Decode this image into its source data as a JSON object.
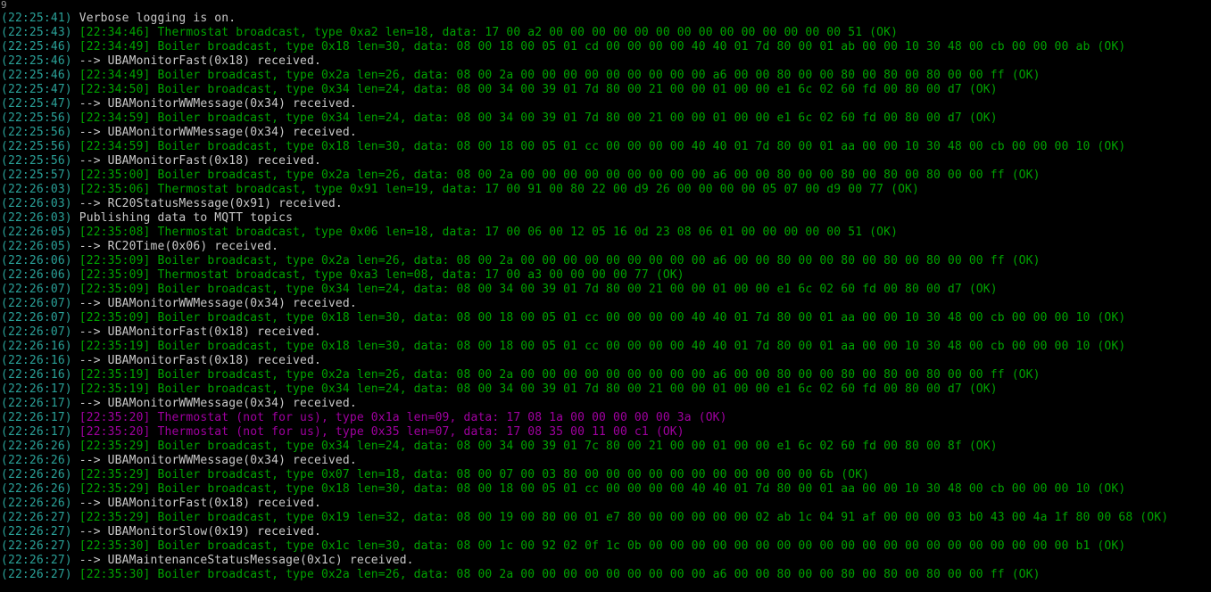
{
  "terminal": {
    "artifact_glyph": "9",
    "colors": {
      "background": "#000000",
      "timestamp": "#2aa198",
      "broadcast_green": "#00a300",
      "info_white": "#c9c9c9",
      "not_for_us_magenta": "#a000a0"
    },
    "lines": [
      {
        "ts": "(22:25:41)",
        "msg": "Verbose logging is on.",
        "c": "white"
      },
      {
        "ts": "(22:25:43)",
        "msg": "[22:34:46] Thermostat broadcast, type 0xa2 len=18, data: 17 00 a2 00 00 00 00 00 00 00 00 00 00 00 00 00 00 51 (OK)",
        "c": "green"
      },
      {
        "ts": "(22:25:46)",
        "msg": "[22:34:49] Boiler broadcast, type 0x18 len=30, data: 08 00 18 00 05 01 cd 00 00 00 00 40 40 01 7d 80 00 01 ab 00 00 10 30 48 00 cb 00 00 00 ab (OK)",
        "c": "green"
      },
      {
        "ts": "(22:25:46)",
        "msg": "--> UBAMonitorFast(0x18) received.",
        "c": "white"
      },
      {
        "ts": "(22:25:46)",
        "msg": "[22:34:49] Boiler broadcast, type 0x2a len=26, data: 08 00 2a 00 00 00 00 00 00 00 00 00 a6 00 00 80 00 00 80 00 80 00 80 00 00 ff (OK)",
        "c": "green"
      },
      {
        "ts": "(22:25:47)",
        "msg": "[22:34:50] Boiler broadcast, type 0x34 len=24, data: 08 00 34 00 39 01 7d 80 00 21 00 00 01 00 00 e1 6c 02 60 fd 00 80 00 d7 (OK)",
        "c": "green"
      },
      {
        "ts": "(22:25:47)",
        "msg": "--> UBAMonitorWWMessage(0x34) received.",
        "c": "white"
      },
      {
        "ts": "(22:25:56)",
        "msg": "[22:34:59] Boiler broadcast, type 0x34 len=24, data: 08 00 34 00 39 01 7d 80 00 21 00 00 01 00 00 e1 6c 02 60 fd 00 80 00 d7 (OK)",
        "c": "green"
      },
      {
        "ts": "(22:25:56)",
        "msg": "--> UBAMonitorWWMessage(0x34) received.",
        "c": "white"
      },
      {
        "ts": "(22:25:56)",
        "msg": "[22:34:59] Boiler broadcast, type 0x18 len=30, data: 08 00 18 00 05 01 cc 00 00 00 00 40 40 01 7d 80 00 01 aa 00 00 10 30 48 00 cb 00 00 00 10 (OK)",
        "c": "green"
      },
      {
        "ts": "(22:25:56)",
        "msg": "--> UBAMonitorFast(0x18) received.",
        "c": "white"
      },
      {
        "ts": "(22:25:57)",
        "msg": "[22:35:00] Boiler broadcast, type 0x2a len=26, data: 08 00 2a 00 00 00 00 00 00 00 00 00 a6 00 00 80 00 00 80 00 80 00 80 00 00 ff (OK)",
        "c": "green"
      },
      {
        "ts": "(22:26:03)",
        "msg": "[22:35:06] Thermostat broadcast, type 0x91 len=19, data: 17 00 91 00 80 22 00 d9 26 00 00 00 00 05 07 00 d9 00 77 (OK)",
        "c": "green"
      },
      {
        "ts": "(22:26:03)",
        "msg": "--> RC20StatusMessage(0x91) received.",
        "c": "white"
      },
      {
        "ts": "(22:26:03)",
        "msg": "Publishing data to MQTT topics",
        "c": "white"
      },
      {
        "ts": "(22:26:05)",
        "msg": "[22:35:08] Thermostat broadcast, type 0x06 len=18, data: 17 00 06 00 12 05 16 0d 23 08 06 01 00 00 00 00 00 51 (OK)",
        "c": "green"
      },
      {
        "ts": "(22:26:05)",
        "msg": "--> RC20Time(0x06) received.",
        "c": "white"
      },
      {
        "ts": "(22:26:06)",
        "msg": "[22:35:09] Boiler broadcast, type 0x2a len=26, data: 08 00 2a 00 00 00 00 00 00 00 00 00 a6 00 00 80 00 00 80 00 80 00 80 00 00 ff (OK)",
        "c": "green"
      },
      {
        "ts": "(22:26:06)",
        "msg": "[22:35:09] Thermostat broadcast, type 0xa3 len=08, data: 17 00 a3 00 00 00 00 77 (OK)",
        "c": "green"
      },
      {
        "ts": "(22:26:07)",
        "msg": "[22:35:09] Boiler broadcast, type 0x34 len=24, data: 08 00 34 00 39 01 7d 80 00 21 00 00 01 00 00 e1 6c 02 60 fd 00 80 00 d7 (OK)",
        "c": "green"
      },
      {
        "ts": "(22:26:07)",
        "msg": "--> UBAMonitorWWMessage(0x34) received.",
        "c": "white"
      },
      {
        "ts": "(22:26:07)",
        "msg": "[22:35:09] Boiler broadcast, type 0x18 len=30, data: 08 00 18 00 05 01 cc 00 00 00 00 40 40 01 7d 80 00 01 aa 00 00 10 30 48 00 cb 00 00 00 10 (OK)",
        "c": "green"
      },
      {
        "ts": "(22:26:07)",
        "msg": "--> UBAMonitorFast(0x18) received.",
        "c": "white"
      },
      {
        "ts": "(22:26:16)",
        "msg": "[22:35:19] Boiler broadcast, type 0x18 len=30, data: 08 00 18 00 05 01 cc 00 00 00 00 40 40 01 7d 80 00 01 aa 00 00 10 30 48 00 cb 00 00 00 10 (OK)",
        "c": "green"
      },
      {
        "ts": "(22:26:16)",
        "msg": "--> UBAMonitorFast(0x18) received.",
        "c": "white"
      },
      {
        "ts": "(22:26:16)",
        "msg": "[22:35:19] Boiler broadcast, type 0x2a len=26, data: 08 00 2a 00 00 00 00 00 00 00 00 00 a6 00 00 80 00 00 80 00 80 00 80 00 00 ff (OK)",
        "c": "green"
      },
      {
        "ts": "(22:26:17)",
        "msg": "[22:35:19] Boiler broadcast, type 0x34 len=24, data: 08 00 34 00 39 01 7d 80 00 21 00 00 01 00 00 e1 6c 02 60 fd 00 80 00 d7 (OK)",
        "c": "green"
      },
      {
        "ts": "(22:26:17)",
        "msg": "--> UBAMonitorWWMessage(0x34) received.",
        "c": "white"
      },
      {
        "ts": "(22:26:17)",
        "msg": "[22:35:20] Thermostat (not for us), type 0x1a len=09, data: 17 08 1a 00 00 00 00 00 3a (OK)",
        "c": "magenta"
      },
      {
        "ts": "(22:26:17)",
        "msg": "[22:35:20] Thermostat (not for us), type 0x35 len=07, data: 17 08 35 00 11 00 c1 (OK)",
        "c": "magenta"
      },
      {
        "ts": "(22:26:26)",
        "msg": "[22:35:29] Boiler broadcast, type 0x34 len=24, data: 08 00 34 00 39 01 7c 80 00 21 00 00 01 00 00 e1 6c 02 60 fd 00 80 00 8f (OK)",
        "c": "green"
      },
      {
        "ts": "(22:26:26)",
        "msg": "--> UBAMonitorWWMessage(0x34) received.",
        "c": "white"
      },
      {
        "ts": "(22:26:26)",
        "msg": "[22:35:29] Boiler broadcast, type 0x07 len=18, data: 08 00 07 00 03 80 00 00 00 00 00 00 00 00 00 00 00 6b (OK)",
        "c": "green"
      },
      {
        "ts": "(22:26:26)",
        "msg": "[22:35:29] Boiler broadcast, type 0x18 len=30, data: 08 00 18 00 05 01 cc 00 00 00 00 40 40 01 7d 80 00 01 aa 00 00 10 30 48 00 cb 00 00 00 10 (OK)",
        "c": "green"
      },
      {
        "ts": "(22:26:26)",
        "msg": "--> UBAMonitorFast(0x18) received.",
        "c": "white"
      },
      {
        "ts": "(22:26:27)",
        "msg": "[22:35:29] Boiler broadcast, type 0x19 len=32, data: 08 00 19 00 80 00 01 e7 80 00 00 00 00 00 02 ab 1c 04 91 af 00 00 00 03 b0 43 00 4a 1f 80 00 68 (OK)",
        "c": "green"
      },
      {
        "ts": "(22:26:27)",
        "msg": "--> UBAMonitorSlow(0x19) received.",
        "c": "white"
      },
      {
        "ts": "(22:26:27)",
        "msg": "[22:35:30] Boiler broadcast, type 0x1c len=30, data: 08 00 1c 00 92 02 0f 1c 0b 00 00 00 00 00 00 00 00 00 00 00 00 00 00 00 00 00 00 00 00 b1 (OK)",
        "c": "green"
      },
      {
        "ts": "(22:26:27)",
        "msg": "--> UBAMaintenanceStatusMessage(0x1c) received.",
        "c": "white"
      },
      {
        "ts": "(22:26:27)",
        "msg": "[22:35:30] Boiler broadcast, type 0x2a len=26, data: 08 00 2a 00 00 00 00 00 00 00 00 00 a6 00 00 80 00 00 80 00 80 00 80 00 00 ff (OK)",
        "c": "green"
      }
    ]
  }
}
